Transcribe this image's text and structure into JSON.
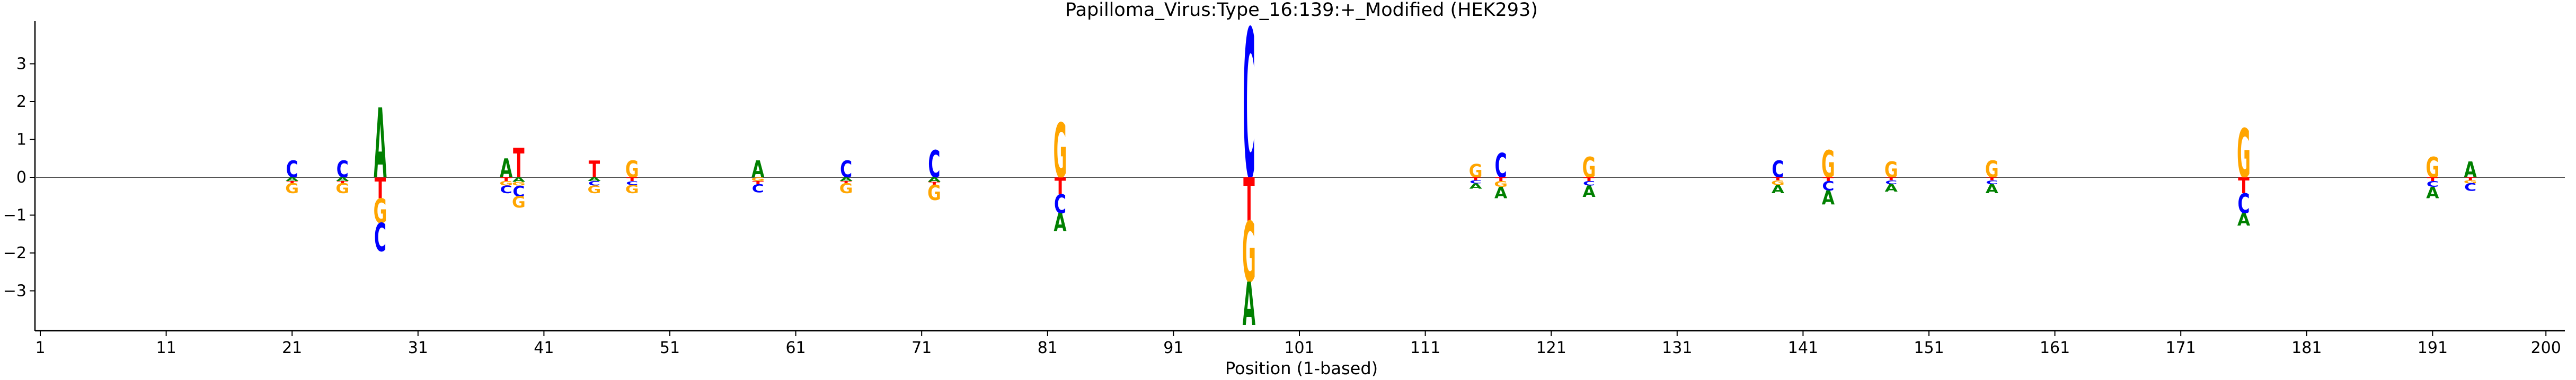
{
  "chart_data": {
    "type": "sequence-logo",
    "title": "Papilloma_Virus:Type_16:139:+_Modified  (HEK293)",
    "xlabel": "Position (1-based)",
    "ylabel": "",
    "xlim": [
      0,
      200
    ],
    "ylim": [
      -3.9,
      4.0
    ],
    "x_ticks": [
      1,
      11,
      21,
      31,
      41,
      51,
      61,
      71,
      81,
      91,
      101,
      111,
      121,
      131,
      141,
      151,
      161,
      171,
      181,
      191,
      200
    ],
    "y_ticks": [
      -3,
      -2,
      -1,
      0,
      1,
      2,
      3
    ],
    "zero_line": true,
    "base_colors": {
      "A": "#008000",
      "C": "#0000ff",
      "G": "#ffa500",
      "T": "#ff0000"
    },
    "positions": [
      {
        "pos": 21,
        "letters": [
          {
            "base": "C",
            "bottom": 0,
            "top": 0.45
          },
          {
            "base": "A",
            "bottom": 0,
            "top": -0.1
          },
          {
            "base": "T",
            "bottom": -0.1,
            "top": -0.16
          },
          {
            "base": "G",
            "bottom": -0.16,
            "top": -0.42
          }
        ]
      },
      {
        "pos": 25,
        "letters": [
          {
            "base": "C",
            "bottom": 0,
            "top": 0.45
          },
          {
            "base": "A",
            "bottom": 0,
            "top": -0.1
          },
          {
            "base": "T",
            "bottom": -0.1,
            "top": -0.16
          },
          {
            "base": "G",
            "bottom": -0.16,
            "top": -0.42
          }
        ]
      },
      {
        "pos": 28,
        "letters": [
          {
            "base": "A",
            "bottom": 0,
            "top": 1.85
          },
          {
            "base": "T",
            "bottom": 0,
            "top": -0.55
          },
          {
            "base": "G",
            "bottom": -0.55,
            "top": -1.2
          },
          {
            "base": "C",
            "bottom": -1.2,
            "top": -1.95
          }
        ]
      },
      {
        "pos": 38,
        "letters": [
          {
            "base": "A",
            "bottom": 0,
            "top": 0.5
          },
          {
            "base": "T",
            "bottom": 0,
            "top": -0.1
          },
          {
            "base": "G",
            "bottom": -0.1,
            "top": -0.22
          },
          {
            "base": "C",
            "bottom": -0.22,
            "top": -0.42
          }
        ]
      },
      {
        "pos": 39,
        "letters": [
          {
            "base": "T",
            "bottom": 0,
            "top": 0.78
          },
          {
            "base": "A",
            "bottom": 0,
            "top": -0.12
          },
          {
            "base": "G",
            "bottom": -0.12,
            "top": -0.22
          },
          {
            "base": "C",
            "bottom": -0.22,
            "top": -0.5
          },
          {
            "base": "G",
            "bottom": -0.5,
            "top": -0.8
          }
        ]
      },
      {
        "pos": 45,
        "letters": [
          {
            "base": "T",
            "bottom": 0,
            "top": 0.45
          },
          {
            "base": "A",
            "bottom": 0,
            "top": -0.1
          },
          {
            "base": "C",
            "bottom": -0.1,
            "top": -0.22
          },
          {
            "base": "G",
            "bottom": -0.22,
            "top": -0.42
          }
        ]
      },
      {
        "pos": 48,
        "letters": [
          {
            "base": "G",
            "bottom": 0,
            "top": 0.45
          },
          {
            "base": "T",
            "bottom": 0,
            "top": -0.1
          },
          {
            "base": "C",
            "bottom": -0.1,
            "top": -0.2
          },
          {
            "base": "G",
            "bottom": -0.2,
            "top": -0.42
          }
        ]
      },
      {
        "pos": 58,
        "letters": [
          {
            "base": "A",
            "bottom": 0,
            "top": 0.45
          },
          {
            "base": "G",
            "bottom": 0,
            "top": -0.1
          },
          {
            "base": "T",
            "bottom": -0.1,
            "top": -0.18
          },
          {
            "base": "C",
            "bottom": -0.18,
            "top": -0.4
          }
        ]
      },
      {
        "pos": 65,
        "letters": [
          {
            "base": "C",
            "bottom": 0,
            "top": 0.45
          },
          {
            "base": "A",
            "bottom": 0,
            "top": -0.1
          },
          {
            "base": "T",
            "bottom": -0.1,
            "top": -0.16
          },
          {
            "base": "G",
            "bottom": -0.16,
            "top": -0.42
          }
        ]
      },
      {
        "pos": 72,
        "letters": [
          {
            "base": "C",
            "bottom": 0,
            "top": 0.72
          },
          {
            "base": "A",
            "bottom": 0,
            "top": -0.12
          },
          {
            "base": "T",
            "bottom": -0.12,
            "top": -0.2
          },
          {
            "base": "G",
            "bottom": -0.2,
            "top": -0.6
          }
        ]
      },
      {
        "pos": 82,
        "letters": [
          {
            "base": "G",
            "bottom": 0,
            "top": 1.45
          },
          {
            "base": "T",
            "bottom": 0,
            "top": -0.45
          },
          {
            "base": "C",
            "bottom": -0.45,
            "top": -0.95
          },
          {
            "base": "A",
            "bottom": -0.95,
            "top": -1.42
          }
        ]
      },
      {
        "pos": 97,
        "letters": [
          {
            "base": "C",
            "bottom": 0,
            "top": 3.95
          },
          {
            "base": "T",
            "bottom": 0,
            "top": -1.15
          },
          {
            "base": "G",
            "bottom": -1.15,
            "top": -2.75
          },
          {
            "base": "A",
            "bottom": -2.75,
            "top": -3.9
          }
        ]
      },
      {
        "pos": 115,
        "letters": [
          {
            "base": "G",
            "bottom": 0,
            "top": 0.35
          },
          {
            "base": "T",
            "bottom": 0,
            "top": -0.08
          },
          {
            "base": "C",
            "bottom": -0.08,
            "top": -0.16
          },
          {
            "base": "A",
            "bottom": -0.16,
            "top": -0.3
          }
        ]
      },
      {
        "pos": 117,
        "letters": [
          {
            "base": "C",
            "bottom": 0,
            "top": 0.65
          },
          {
            "base": "T",
            "bottom": 0,
            "top": -0.1
          },
          {
            "base": "G",
            "bottom": -0.1,
            "top": -0.25
          },
          {
            "base": "A",
            "bottom": -0.25,
            "top": -0.55
          }
        ]
      },
      {
        "pos": 124,
        "letters": [
          {
            "base": "G",
            "bottom": 0,
            "top": 0.55
          },
          {
            "base": "T",
            "bottom": 0,
            "top": -0.1
          },
          {
            "base": "C",
            "bottom": -0.1,
            "top": -0.22
          },
          {
            "base": "A",
            "bottom": -0.22,
            "top": -0.52
          }
        ]
      },
      {
        "pos": 139,
        "letters": [
          {
            "base": "C",
            "bottom": 0,
            "top": 0.45
          },
          {
            "base": "T",
            "bottom": 0,
            "top": -0.08
          },
          {
            "base": "G",
            "bottom": -0.08,
            "top": -0.2
          },
          {
            "base": "A",
            "bottom": -0.2,
            "top": -0.42
          }
        ]
      },
      {
        "pos": 143,
        "letters": [
          {
            "base": "G",
            "bottom": 0,
            "top": 0.72
          },
          {
            "base": "T",
            "bottom": 0,
            "top": -0.1
          },
          {
            "base": "C",
            "bottom": -0.1,
            "top": -0.35
          },
          {
            "base": "A",
            "bottom": -0.35,
            "top": -0.72
          }
        ]
      },
      {
        "pos": 148,
        "letters": [
          {
            "base": "G",
            "bottom": 0,
            "top": 0.42
          },
          {
            "base": "T",
            "bottom": 0,
            "top": -0.08
          },
          {
            "base": "C",
            "bottom": -0.08,
            "top": -0.18
          },
          {
            "base": "A",
            "bottom": -0.18,
            "top": -0.38
          }
        ]
      },
      {
        "pos": 156,
        "letters": [
          {
            "base": "G",
            "bottom": 0,
            "top": 0.45
          },
          {
            "base": "T",
            "bottom": 0,
            "top": -0.08
          },
          {
            "base": "C",
            "bottom": -0.08,
            "top": -0.18
          },
          {
            "base": "A",
            "bottom": -0.18,
            "top": -0.42
          }
        ]
      },
      {
        "pos": 176,
        "letters": [
          {
            "base": "G",
            "bottom": 0,
            "top": 1.3
          },
          {
            "base": "T",
            "bottom": 0,
            "top": -0.42
          },
          {
            "base": "C",
            "bottom": -0.42,
            "top": -0.95
          },
          {
            "base": "A",
            "bottom": -0.95,
            "top": -1.28
          }
        ]
      },
      {
        "pos": 191,
        "letters": [
          {
            "base": "G",
            "bottom": 0,
            "top": 0.55
          },
          {
            "base": "T",
            "bottom": 0,
            "top": -0.1
          },
          {
            "base": "C",
            "bottom": -0.1,
            "top": -0.25
          },
          {
            "base": "A",
            "bottom": -0.25,
            "top": -0.55
          }
        ]
      },
      {
        "pos": 194,
        "letters": [
          {
            "base": "A",
            "bottom": 0,
            "top": 0.42
          },
          {
            "base": "T",
            "bottom": 0,
            "top": -0.08
          },
          {
            "base": "G",
            "bottom": -0.08,
            "top": -0.16
          },
          {
            "base": "C",
            "bottom": -0.16,
            "top": -0.36
          }
        ]
      }
    ]
  }
}
